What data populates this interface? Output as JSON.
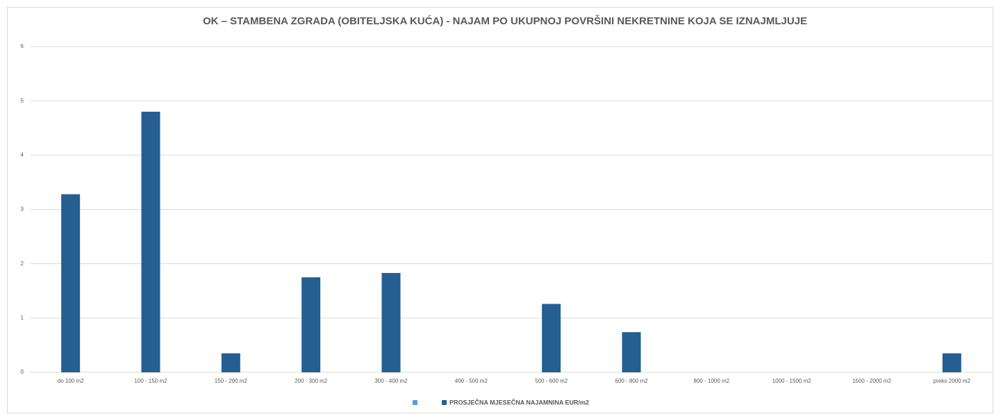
{
  "chart_data": {
    "type": "bar",
    "title": "OK – STAMBENA ZGRADA (OBITELJSKA KUĆA) - NAJAM PO UKUPNOJ POVRŠINI NEKRETNINE KOJA SE IZNAJMLJUJE",
    "categories": [
      "do 100 m2",
      "100 - 150 m2",
      "150 - 200 m2",
      "200 - 300 m2",
      "300 - 400 m2",
      "400 - 500 m2",
      "500 - 600 m2",
      "600 - 800 m2",
      "800 - 1000 m2",
      "1000 - 1500 m2",
      "1500 - 2000 m2",
      "preko 2000 m2"
    ],
    "series": [
      {
        "name": "PROSJEČNA MJESEČNA NAJAMNINA EUR/m2",
        "color": "#255e91",
        "values": [
          3.28,
          4.8,
          0.35,
          1.75,
          1.83,
          0,
          1.26,
          0.74,
          0,
          0,
          0,
          0.35
        ]
      }
    ],
    "ylim": [
      0,
      6
    ],
    "yticks": [
      0,
      1,
      2,
      3,
      4,
      5,
      6
    ],
    "grid": true,
    "legend": "bottom"
  }
}
